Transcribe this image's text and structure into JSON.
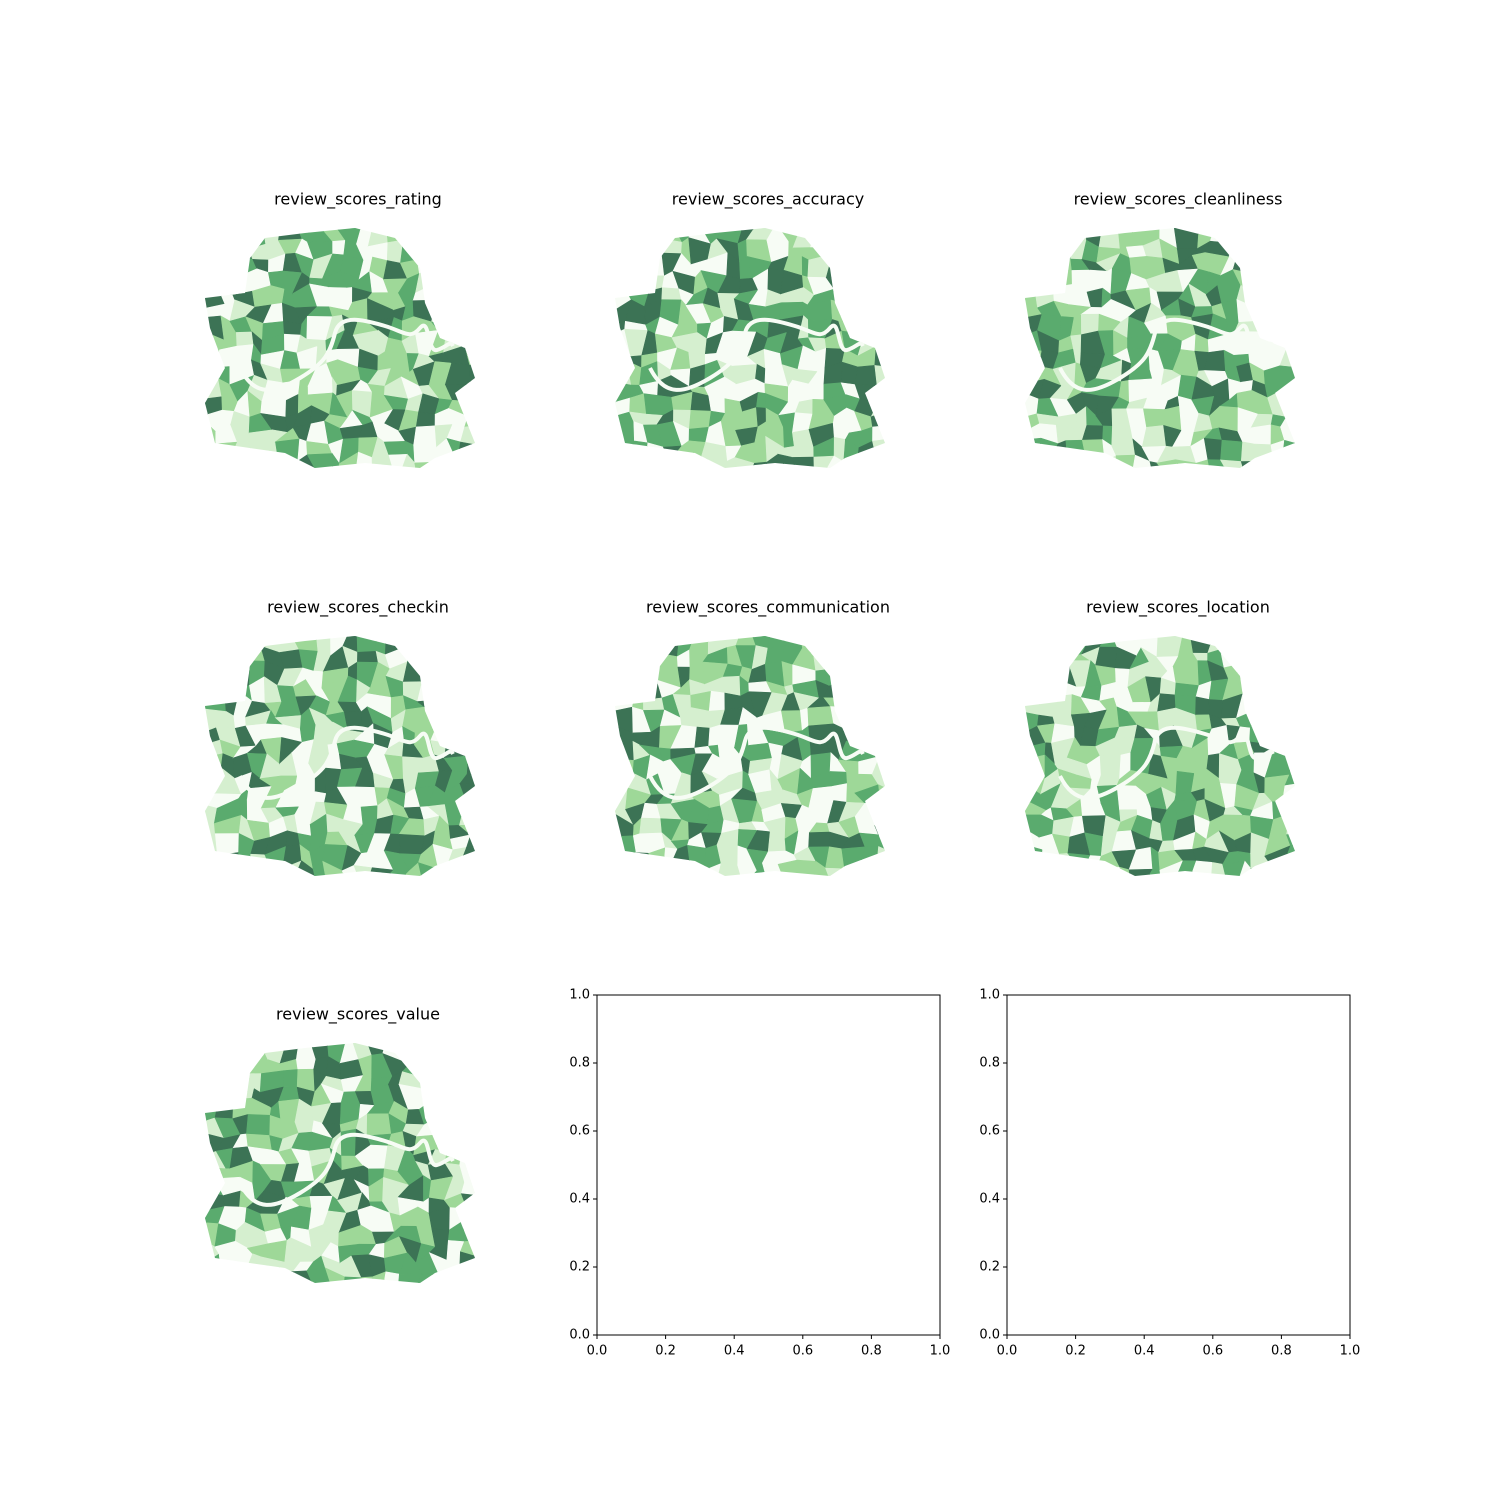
{
  "chart_data": [
    {
      "type": "choropleth",
      "title": "review_scores_rating",
      "colormap": [
        "#f7fcf5",
        "#d5efcf",
        "#9ed898",
        "#5aab6e",
        "#3c7355"
      ]
    },
    {
      "type": "choropleth",
      "title": "review_scores_accuracy",
      "colormap": [
        "#f7fcf5",
        "#d5efcf",
        "#9ed898",
        "#5aab6e",
        "#3c7355"
      ]
    },
    {
      "type": "choropleth",
      "title": "review_scores_cleanliness",
      "colormap": [
        "#f7fcf5",
        "#d5efcf",
        "#9ed898",
        "#5aab6e",
        "#3c7355"
      ]
    },
    {
      "type": "choropleth",
      "title": "review_scores_checkin",
      "colormap": [
        "#f7fcf5",
        "#d5efcf",
        "#9ed898",
        "#5aab6e",
        "#3c7355"
      ]
    },
    {
      "type": "choropleth",
      "title": "review_scores_communication",
      "colormap": [
        "#f7fcf5",
        "#d5efcf",
        "#9ed898",
        "#5aab6e",
        "#3c7355"
      ]
    },
    {
      "type": "choropleth",
      "title": "review_scores_location",
      "colormap": [
        "#f7fcf5",
        "#d5efcf",
        "#9ed898",
        "#5aab6e",
        "#3c7355"
      ]
    },
    {
      "type": "choropleth",
      "title": "review_scores_value",
      "colormap": [
        "#f7fcf5",
        "#d5efcf",
        "#9ed898",
        "#5aab6e",
        "#3c7355"
      ]
    },
    {
      "type": "empty",
      "xlim": [
        0,
        1
      ],
      "ylim": [
        0,
        1
      ],
      "xticks": [
        {
          "value": 0,
          "label": "0.0"
        },
        {
          "value": 0.2,
          "label": "0.2"
        },
        {
          "value": 0.4,
          "label": "0.4"
        },
        {
          "value": 0.6,
          "label": "0.6"
        },
        {
          "value": 0.8,
          "label": "0.8"
        },
        {
          "value": 1,
          "label": "1.0"
        }
      ],
      "yticks": [
        {
          "value": 0,
          "label": "0.0"
        },
        {
          "value": 0.2,
          "label": "0.2"
        },
        {
          "value": 0.4,
          "label": "0.4"
        },
        {
          "value": 0.6,
          "label": "0.6"
        },
        {
          "value": 0.8,
          "label": "0.8"
        },
        {
          "value": 1,
          "label": "1.0"
        }
      ]
    },
    {
      "type": "empty",
      "xlim": [
        0,
        1
      ],
      "ylim": [
        0,
        1
      ],
      "xticks": [
        {
          "value": 0,
          "label": "0.0"
        },
        {
          "value": 0.2,
          "label": "0.2"
        },
        {
          "value": 0.4,
          "label": "0.4"
        },
        {
          "value": 0.6,
          "label": "0.6"
        },
        {
          "value": 0.8,
          "label": "0.8"
        },
        {
          "value": 1,
          "label": "1.0"
        }
      ],
      "yticks": [
        {
          "value": 0,
          "label": "0.0"
        },
        {
          "value": 0.2,
          "label": "0.2"
        },
        {
          "value": 0.4,
          "label": "0.4"
        },
        {
          "value": 0.6,
          "label": "0.6"
        },
        {
          "value": 0.8,
          "label": "0.8"
        },
        {
          "value": 1,
          "label": "1.0"
        }
      ]
    }
  ]
}
